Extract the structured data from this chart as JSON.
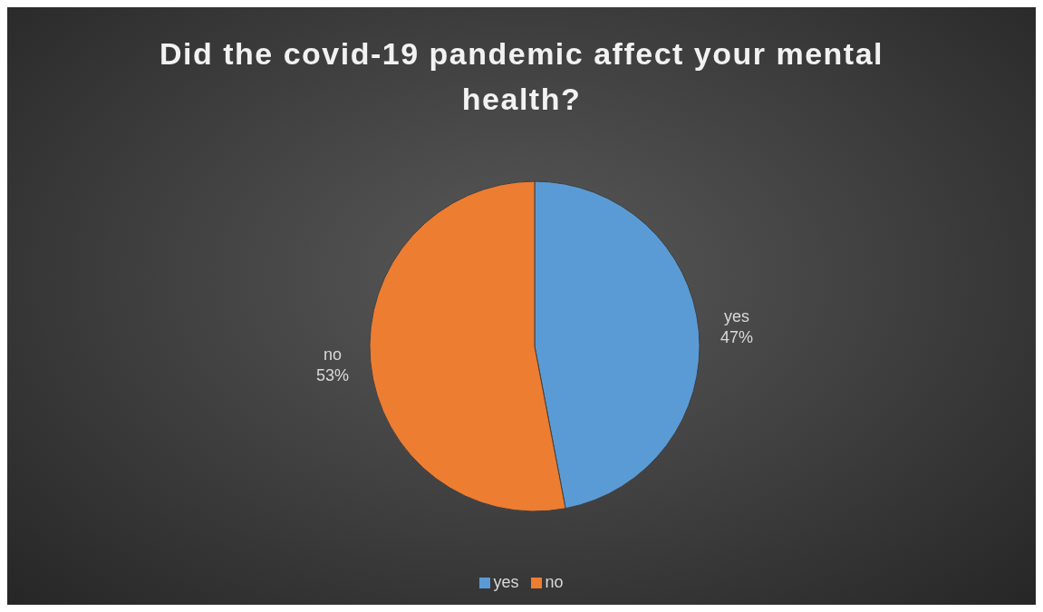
{
  "chart_data": {
    "type": "pie",
    "title": "Did the covid-19 pandemic affect your mental health?",
    "categories": [
      "yes",
      "no"
    ],
    "values": [
      47,
      53
    ],
    "value_labels": [
      "47%",
      "53%"
    ],
    "colors": [
      "#5b9bd5",
      "#ed7d31"
    ],
    "legend": "bottom"
  }
}
